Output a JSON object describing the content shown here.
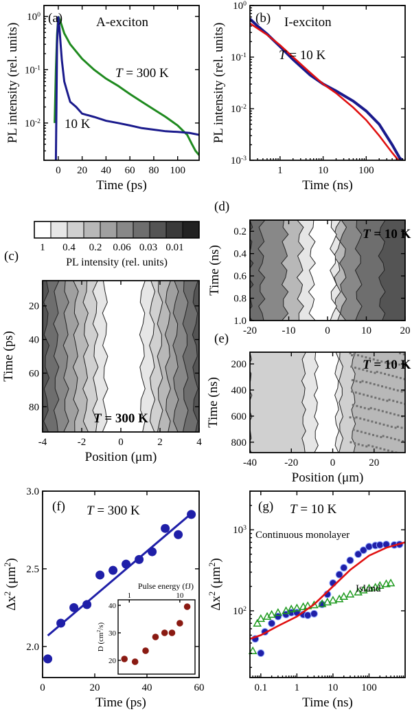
{
  "chart_data": [
    {
      "panel": "(a)",
      "type": "line",
      "title": "A-exciton",
      "xlabel": "Time (ps)",
      "ylabel": "PL intensity (rel. units)",
      "xlim": [
        -12,
        118
      ],
      "ylim": [
        0.002,
        1.6
      ],
      "yscale": "log",
      "xticks": [
        "0",
        "20",
        "40",
        "60",
        "80",
        "100"
      ],
      "yticks": [
        "10^0",
        "10^-1",
        "10^-2"
      ],
      "annotations": [
        "T = 300 K",
        "10 K"
      ],
      "series": [
        {
          "color": "#1f8a1f",
          "x": [
            -3,
            -2,
            -1,
            0,
            2,
            5,
            10,
            20,
            30,
            40,
            50,
            60,
            70,
            80,
            90,
            100,
            108,
            112,
            115,
            118
          ],
          "y": [
            0.01,
            0.1,
            0.45,
            1.0,
            0.78,
            0.48,
            0.3,
            0.16,
            0.1,
            0.068,
            0.05,
            0.035,
            0.025,
            0.018,
            0.013,
            0.009,
            0.006,
            0.004,
            0.003,
            0.0025
          ]
        },
        {
          "color": "#1a1a8c",
          "x": [
            -2,
            -1,
            0,
            1,
            2,
            3,
            5,
            8,
            10,
            15,
            20,
            30,
            40,
            50,
            60,
            70,
            80,
            90,
            100,
            110,
            118
          ],
          "y": [
            0.002,
            0.3,
            1.0,
            0.6,
            0.3,
            0.15,
            0.06,
            0.035,
            0.025,
            0.02,
            0.015,
            0.013,
            0.011,
            0.01,
            0.009,
            0.008,
            0.0075,
            0.007,
            0.0068,
            0.0065,
            0.006
          ]
        }
      ]
    },
    {
      "panel": "(b)",
      "type": "line",
      "title": "I-exciton",
      "xlabel": "Time (ns)",
      "ylabel": "PL intensity (rel. units)",
      "xlim": [
        0.2,
        800
      ],
      "ylim": [
        0.001,
        1
      ],
      "xscale": "log",
      "yscale": "log",
      "xticks": [
        "1",
        "10",
        "100"
      ],
      "yticks": [
        "10^0",
        "10^-1",
        "10^-2",
        "10^-3"
      ],
      "annotations": [
        "T = 10 K"
      ],
      "series": [
        {
          "color": "#1a1a8c",
          "x": [
            0.2,
            0.3,
            0.5,
            1,
            2,
            5,
            10,
            20,
            50,
            100,
            200,
            400,
            600,
            700
          ],
          "y": [
            0.55,
            0.4,
            0.28,
            0.16,
            0.09,
            0.045,
            0.03,
            0.022,
            0.014,
            0.009,
            0.005,
            0.002,
            0.0011,
            0.001
          ]
        },
        {
          "color": "#e01010",
          "x": [
            0.2,
            0.5,
            1,
            2,
            5,
            10,
            20,
            50,
            100,
            200,
            400,
            700
          ],
          "y": [
            0.45,
            0.27,
            0.17,
            0.1,
            0.05,
            0.03,
            0.02,
            0.0105,
            0.006,
            0.003,
            0.0014,
            0.0008
          ]
        }
      ]
    },
    {
      "panel": "(c)",
      "type": "heatmap",
      "colorbar_label": "PL intensity (rel. units)",
      "colorbar_ticks": [
        "1",
        "0.4",
        "0.2",
        "0.06",
        "0.03",
        "0.01"
      ],
      "xlabel": "Position (μm)",
      "ylabel": "Time (ps)",
      "xlim": [
        -4,
        4
      ],
      "ylim": [
        95,
        5
      ],
      "xticks": [
        "-4",
        "-2",
        "0",
        "2",
        "4"
      ],
      "yticks": [
        "20",
        "40",
        "60",
        "80"
      ],
      "annotations": [
        "T = 300 K"
      ]
    },
    {
      "panel": "(d)",
      "type": "heatmap",
      "xlabel": "",
      "ylabel": "Time (ns)",
      "xlim": [
        -20,
        20
      ],
      "ylim": [
        1.0,
        0.1
      ],
      "xticks": [
        "-20",
        "-10",
        "0",
        "10",
        "20"
      ],
      "yticks": [
        "0.2",
        "0.4",
        "0.6",
        "0.8",
        "1.0"
      ],
      "annotations": [
        "T = 10 K"
      ]
    },
    {
      "panel": "(e)",
      "type": "heatmap",
      "xlabel": "Position (μm)",
      "ylabel": "Time (ns)",
      "xlim": [
        -40,
        35
      ],
      "ylim": [
        880,
        110
      ],
      "xticks": [
        "-40",
        "-20",
        "0",
        "20"
      ],
      "yticks": [
        "200",
        "400",
        "600",
        "800"
      ],
      "annotations": [
        "T = 10 K"
      ]
    },
    {
      "panel": "(f)",
      "type": "scatter",
      "xlabel": "Time (ps)",
      "ylabel": "Δx² (μm²)",
      "xlim": [
        0,
        60
      ],
      "ylim": [
        1.8,
        3.0
      ],
      "xticks": [
        "0",
        "20",
        "40",
        "60"
      ],
      "yticks": [
        "2.0",
        "2.5",
        "3.0"
      ],
      "annotations": [
        "T = 300 K"
      ],
      "series": [
        {
          "color": "#1f1fa8",
          "x": [
            2,
            7,
            12,
            17,
            22,
            27,
            32,
            37,
            42,
            47,
            52,
            57
          ],
          "y": [
            1.92,
            2.15,
            2.25,
            2.27,
            2.46,
            2.49,
            2.53,
            2.56,
            2.61,
            2.76,
            2.72,
            2.85
          ]
        }
      ],
      "fit": {
        "color": "#1f1fa8",
        "x": [
          2,
          58
        ],
        "y": [
          2.07,
          2.87
        ]
      },
      "inset": {
        "xlabel": "Pulse energy (fJ)",
        "ylabel": "D (cm²/s)",
        "xscale": "log",
        "xlim": [
          0.6,
          20
        ],
        "ylim": [
          15,
          42
        ],
        "xticks": [
          "1",
          "10"
        ],
        "yticks": [
          "20",
          "30",
          "40"
        ],
        "series": [
          {
            "color": "#8a1a12",
            "x": [
              0.8,
              1.3,
              2.1,
              3.3,
              5,
              7,
              10,
              14
            ],
            "y": [
              20.5,
              19.5,
              23.5,
              28.5,
              30,
              30,
              33.5,
              39.5
            ]
          }
        ]
      }
    },
    {
      "panel": "(g)",
      "type": "scatter",
      "xlabel": "Time (ns)",
      "ylabel": "Δx² (μm²)",
      "xlim": [
        0.05,
        1000
      ],
      "ylim": [
        15,
        3000
      ],
      "xscale": "log",
      "yscale": "log",
      "xticks": [
        "0.1",
        "1",
        "10",
        "100"
      ],
      "yticks": [
        "10^2",
        "10^3"
      ],
      "annotations": [
        "T = 10 K",
        "Continuous monolayer",
        "Island"
      ],
      "series": [
        {
          "name": "Continuous monolayer",
          "marker": "circle",
          "color": "#1f1fa8",
          "x": [
            0.07,
            0.1,
            0.13,
            0.2,
            0.3,
            0.5,
            0.7,
            1,
            1.5,
            2,
            3,
            5,
            7,
            10,
            15,
            20,
            30,
            50,
            70,
            100,
            150,
            200,
            300,
            500,
            700
          ],
          "y": [
            45,
            30,
            55,
            70,
            85,
            90,
            95,
            95,
            90,
            88,
            92,
            120,
            160,
            220,
            280,
            340,
            420,
            500,
            560,
            620,
            640,
            650,
            660,
            650,
            660
          ]
        },
        {
          "name": "Island",
          "marker": "triangle",
          "color": "#1e9a1e",
          "x": [
            0.06,
            0.08,
            0.1,
            0.15,
            0.2,
            0.3,
            0.5,
            0.7,
            1,
            1.5,
            2,
            3,
            5,
            7,
            10,
            15,
            20,
            30,
            50,
            70,
            100,
            150,
            200,
            300,
            400
          ],
          "y": [
            32,
            70,
            80,
            85,
            90,
            95,
            100,
            105,
            108,
            112,
            115,
            118,
            122,
            128,
            135,
            140,
            150,
            160,
            170,
            180,
            190,
            195,
            205,
            215,
            220
          ]
        }
      ],
      "fit": {
        "color": "#e01010",
        "x": [
          0.05,
          0.1,
          0.3,
          1,
          3,
          10,
          30,
          100,
          300,
          1000
        ],
        "y": [
          45,
          50,
          65,
          85,
          120,
          200,
          320,
          480,
          600,
          700
        ]
      }
    }
  ]
}
